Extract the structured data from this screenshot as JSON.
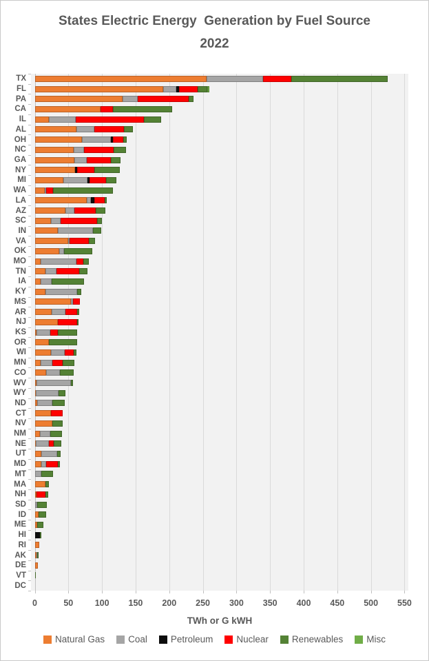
{
  "title": "States Electric Energy  Generation by Fuel Source 2022",
  "chart_data": {
    "type": "bar",
    "orientation": "horizontal",
    "stacked": true,
    "title": "States Electric Energy  Generation by Fuel Source 2022",
    "xlabel": "TWh or G kWH",
    "xlim": [
      0,
      550
    ],
    "xticks": [
      0,
      50,
      100,
      150,
      200,
      250,
      300,
      350,
      400,
      450,
      500,
      550
    ],
    "grid": "vertical",
    "legend_position": "bottom",
    "series": [
      {
        "name": "Natural Gas",
        "color": "#ED7D31"
      },
      {
        "name": "Coal",
        "color": "#A5A5A5"
      },
      {
        "name": "Petroleum",
        "color": "#0D0D0D"
      },
      {
        "name": "Nuclear",
        "color": "#FF0000"
      },
      {
        "name": "Renewables",
        "color": "#548235"
      },
      {
        "name": "Misc",
        "color": "#70AD47"
      }
    ],
    "states": [
      {
        "label": "TX",
        "values": [
          256,
          84,
          0,
          42,
          143,
          0
        ]
      },
      {
        "label": "FL",
        "values": [
          191,
          20,
          4,
          27,
          15,
          3
        ]
      },
      {
        "label": "PA",
        "values": [
          131,
          22,
          0,
          76,
          7,
          0
        ]
      },
      {
        "label": "CA",
        "values": [
          98,
          0,
          0,
          18,
          88,
          0
        ]
      },
      {
        "label": "IL",
        "values": [
          21,
          40,
          0,
          101,
          26,
          0
        ]
      },
      {
        "label": "AL",
        "values": [
          62,
          27,
          0,
          44,
          13,
          0
        ]
      },
      {
        "label": "OH",
        "values": [
          70,
          43,
          3,
          16,
          5,
          0
        ]
      },
      {
        "label": "NC",
        "values": [
          58,
          15,
          0,
          44,
          19,
          0
        ]
      },
      {
        "label": "GA",
        "values": [
          59,
          18,
          0,
          36,
          15,
          0
        ]
      },
      {
        "label": "NY",
        "values": [
          60,
          0,
          3,
          26,
          37,
          0
        ]
      },
      {
        "label": "MI",
        "values": [
          43,
          35,
          3,
          25,
          15,
          0
        ]
      },
      {
        "label": "WA",
        "values": [
          15,
          2,
          0,
          10,
          89,
          0
        ]
      },
      {
        "label": "LA",
        "values": [
          77,
          6,
          6,
          15,
          3,
          0
        ]
      },
      {
        "label": "AZ",
        "values": [
          46,
          13,
          0,
          32,
          14,
          0
        ]
      },
      {
        "label": "SC",
        "values": [
          24,
          14,
          0,
          55,
          7,
          0
        ]
      },
      {
        "label": "IN",
        "values": [
          34,
          53,
          0,
          0,
          12,
          0
        ]
      },
      {
        "label": "VA",
        "values": [
          50,
          2,
          0,
          28,
          10,
          0
        ]
      },
      {
        "label": "OK",
        "values": [
          36,
          8,
          0,
          0,
          42,
          0
        ]
      },
      {
        "label": "MO",
        "values": [
          9,
          53,
          0,
          10,
          8,
          0
        ]
      },
      {
        "label": "TN",
        "values": [
          16,
          16,
          0,
          34,
          12,
          0
        ]
      },
      {
        "label": "IA",
        "values": [
          9,
          16,
          0,
          0,
          48,
          0
        ]
      },
      {
        "label": "KY",
        "values": [
          16,
          47,
          0,
          0,
          6,
          0
        ]
      },
      {
        "label": "MS",
        "values": [
          54,
          3,
          0,
          10,
          0,
          0
        ]
      },
      {
        "label": "AR",
        "values": [
          25,
          21,
          0,
          17,
          3,
          0
        ]
      },
      {
        "label": "NJ",
        "values": [
          34,
          0,
          0,
          29,
          2,
          0
        ]
      },
      {
        "label": "KS",
        "values": [
          3,
          20,
          0,
          11,
          29,
          0
        ]
      },
      {
        "label": "OR",
        "values": [
          21,
          0,
          0,
          0,
          42,
          0
        ]
      },
      {
        "label": "WI",
        "values": [
          24,
          21,
          0,
          13,
          4,
          0
        ]
      },
      {
        "label": "MN",
        "values": [
          9,
          17,
          0,
          15,
          18,
          0
        ]
      },
      {
        "label": "CO",
        "values": [
          17,
          20,
          0,
          0,
          21,
          0
        ]
      },
      {
        "label": "WV",
        "values": [
          3,
          51,
          0,
          0,
          3,
          0
        ]
      },
      {
        "label": "WY",
        "values": [
          2,
          33,
          0,
          0,
          11,
          0
        ]
      },
      {
        "label": "ND",
        "values": [
          4,
          22,
          0,
          0,
          19,
          0
        ]
      },
      {
        "label": "CT",
        "values": [
          24,
          0,
          0,
          18,
          0,
          0
        ]
      },
      {
        "label": "NV",
        "values": [
          26,
          0,
          0,
          0,
          16,
          0
        ]
      },
      {
        "label": "NM",
        "values": [
          8,
          15,
          0,
          0,
          17,
          0
        ]
      },
      {
        "label": "NE",
        "values": [
          2,
          19,
          0,
          7,
          11,
          0
        ]
      },
      {
        "label": "UT",
        "values": [
          10,
          23,
          0,
          0,
          5,
          0
        ]
      },
      {
        "label": "MD",
        "values": [
          10,
          7,
          0,
          17,
          3,
          0
        ]
      },
      {
        "label": "MT",
        "values": [
          1,
          9,
          0,
          0,
          17,
          0
        ]
      },
      {
        "label": "MA",
        "values": [
          16,
          0,
          0,
          0,
          5,
          0
        ]
      },
      {
        "label": "NH",
        "values": [
          3,
          0,
          0,
          13,
          4,
          0
        ]
      },
      {
        "label": "SD",
        "values": [
          1,
          3,
          0,
          0,
          14,
          0
        ]
      },
      {
        "label": "ID",
        "values": [
          6,
          0,
          0,
          0,
          11,
          0
        ]
      },
      {
        "label": "ME",
        "values": [
          4,
          0,
          0,
          0,
          9,
          0
        ]
      },
      {
        "label": "HI",
        "values": [
          0,
          0,
          8,
          0,
          2,
          0
        ]
      },
      {
        "label": "RI",
        "values": [
          7,
          0,
          0,
          0,
          0,
          0
        ]
      },
      {
        "label": "AK",
        "values": [
          3,
          1,
          0,
          0,
          2,
          0
        ]
      },
      {
        "label": "DE",
        "values": [
          5,
          0,
          0,
          0,
          0,
          0
        ]
      },
      {
        "label": "VT",
        "values": [
          0,
          0,
          0,
          0,
          2,
          0
        ]
      },
      {
        "label": "DC",
        "values": [
          0,
          0,
          0,
          0,
          0,
          0
        ]
      }
    ]
  },
  "style": {
    "plot_bg": "#f2f2f2",
    "gridline_color": "#d9d9d9",
    "axis_color": "#bfbfbf",
    "text_color": "#595959"
  }
}
